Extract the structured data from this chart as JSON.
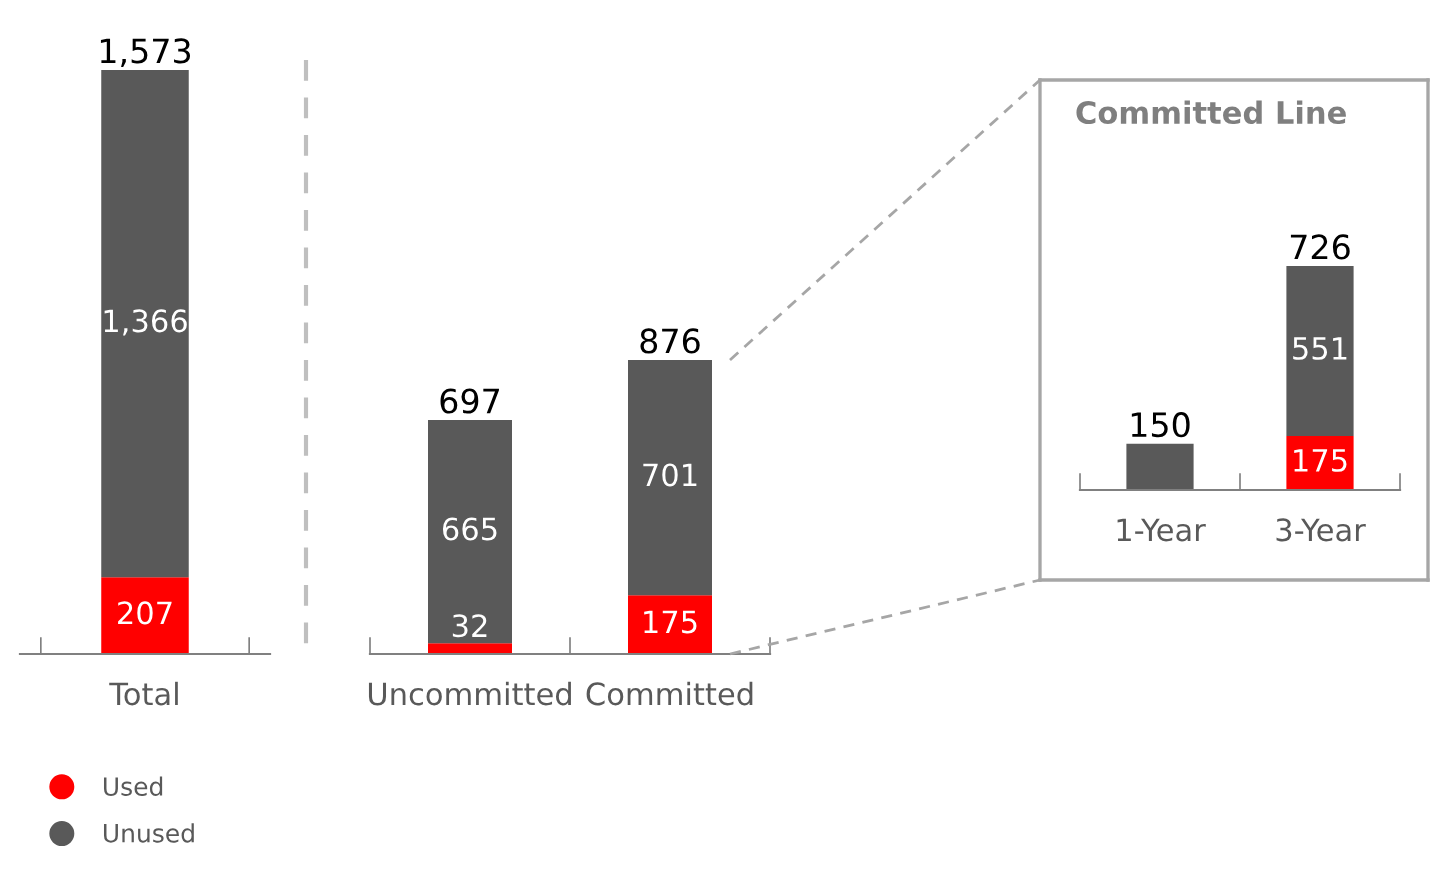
{
  "chart_data": [
    {
      "type": "bar",
      "stacked": true,
      "categories": [
        "Total"
      ],
      "legend": "bottom left",
      "series": [
        {
          "name": "Used",
          "color": "#ff0000",
          "values": [
            207
          ],
          "value_labels": [
            "207"
          ]
        },
        {
          "name": "Unused",
          "color": "#595959",
          "values": [
            1366
          ],
          "value_labels": [
            "1,366"
          ]
        }
      ],
      "totals": [
        "1,573"
      ]
    },
    {
      "type": "bar",
      "stacked": true,
      "categories": [
        "Uncommitted",
        "Committed"
      ],
      "series": [
        {
          "color": "#ff0000",
          "values": [
            32,
            175
          ],
          "value_labels": [
            "32",
            "175"
          ]
        },
        {
          "color": "#595959",
          "values": [
            665,
            701
          ],
          "value_labels": [
            "665",
            "701"
          ]
        }
      ],
      "totals": [
        "697",
        "876"
      ]
    },
    {
      "type": "bar",
      "stacked": true,
      "title": "Committed Line",
      "categories": [
        "1-Year",
        "3-Year"
      ],
      "series": [
        {
          "color": "#ff0000",
          "values": [
            null,
            175
          ],
          "value_labels": [
            null,
            "175"
          ]
        },
        {
          "color": "#595959",
          "values": [
            150,
            551
          ],
          "value_labels": [
            null,
            "551"
          ]
        }
      ],
      "totals": [
        "150",
        "726"
      ]
    }
  ]
}
